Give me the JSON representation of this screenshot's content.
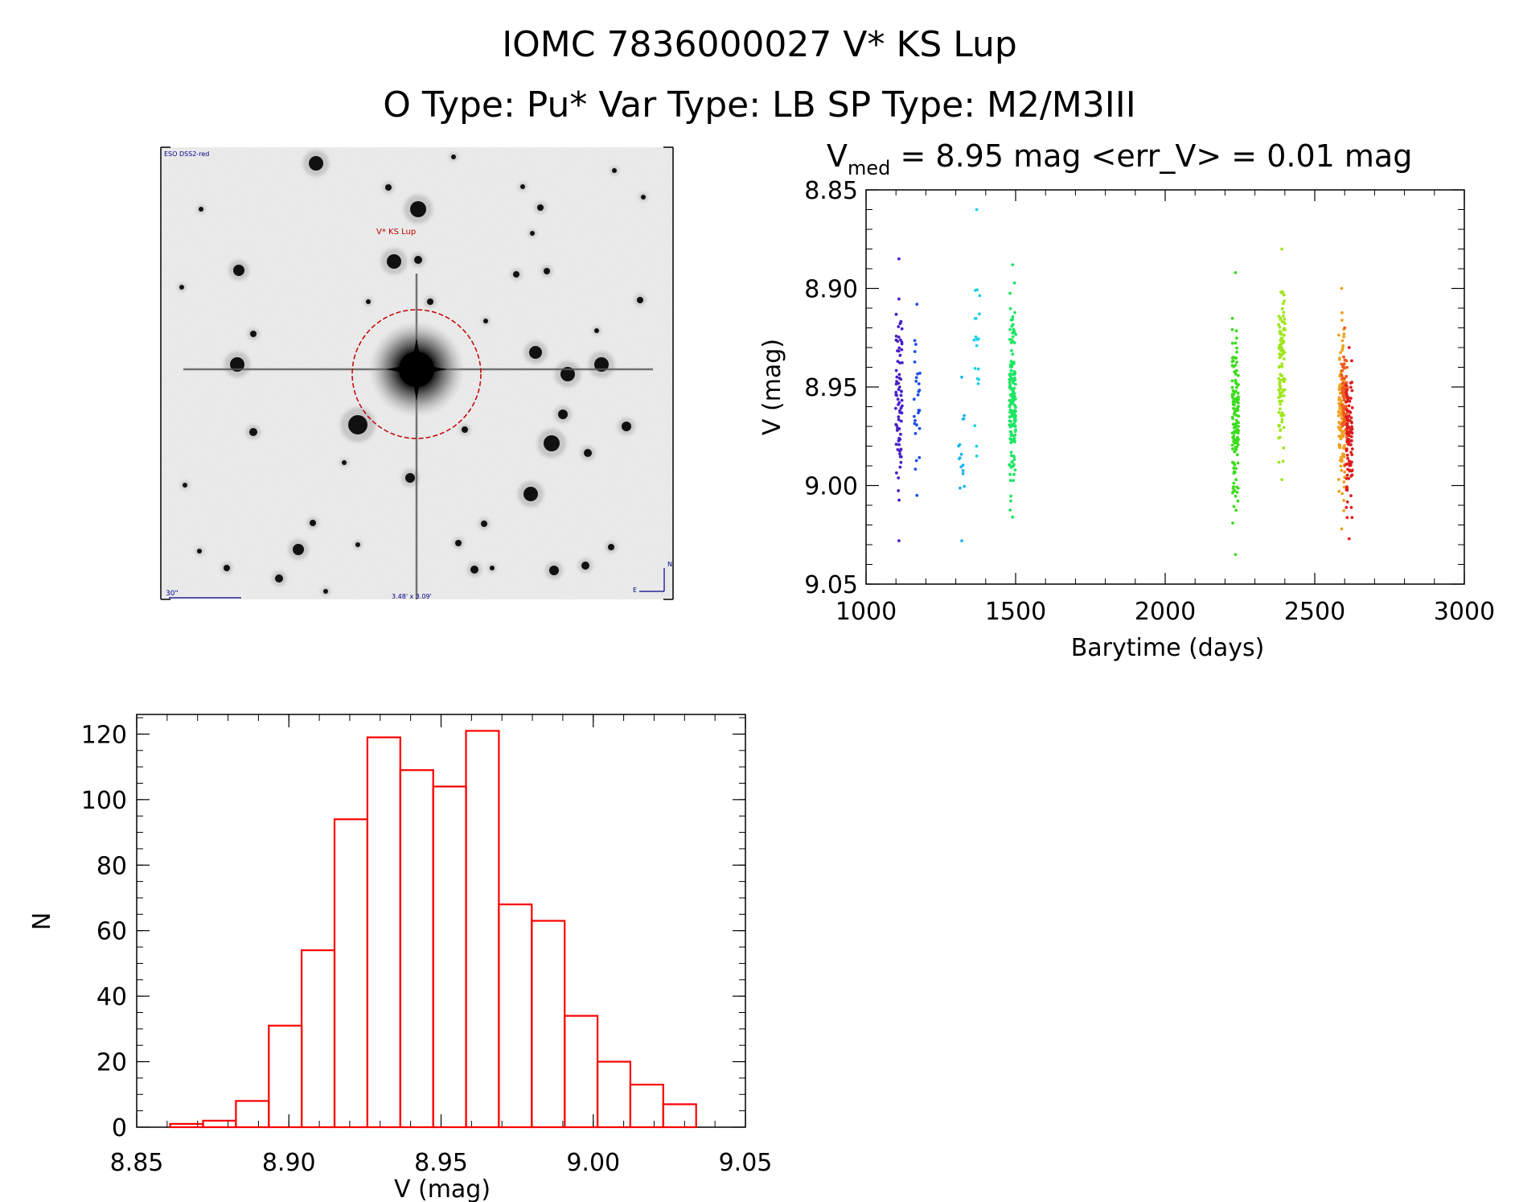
{
  "header": {
    "line1": "IOMC 7836000027   V* KS Lup",
    "line2": "O Type: Pu*  Var Type: LB  SP Type: M2/M3III"
  },
  "finder": {
    "survey_label": "ESO DSS2-red",
    "target_label": "V* KS Lup",
    "scale_label": "30\"",
    "size_label": "3.48' x 3.09'",
    "north_label": "N",
    "east_label": "E"
  },
  "chart_data": [
    {
      "type": "scatter",
      "title_prefix": "V",
      "title_sub": "med",
      "title_rest": " = 8.95 mag <err_V> = 0.01 mag",
      "xlabel": "Barytime (days)",
      "ylabel": "V (mag)",
      "xlim": [
        1000,
        3000
      ],
      "ylim": [
        9.05,
        8.85
      ],
      "y_inverted": true,
      "xticks": [
        "1000",
        "1500",
        "2000",
        "2500",
        "3000"
      ],
      "yticks": [
        "8.85",
        "8.90",
        "8.95",
        "9.00",
        "9.05"
      ],
      "groups": [
        {
          "x": 1110,
          "ymin": 8.885,
          "ymax": 9.028,
          "n": 75,
          "color": "#4b1ec8"
        },
        {
          "x": 1170,
          "ymin": 8.908,
          "ymax": 9.005,
          "n": 25,
          "color": "#1e50e6"
        },
        {
          "x": 1320,
          "ymin": 8.945,
          "ymax": 9.028,
          "n": 14,
          "color": "#1eb4f0"
        },
        {
          "x": 1370,
          "ymin": 8.86,
          "ymax": 8.985,
          "n": 18,
          "color": "#1ed2e6"
        },
        {
          "x": 1490,
          "ymin": 8.888,
          "ymax": 9.016,
          "n": 170,
          "color": "#1ee664"
        },
        {
          "x": 2235,
          "ymin": 8.892,
          "ymax": 9.035,
          "n": 140,
          "color": "#3cdc1e"
        },
        {
          "x": 2390,
          "ymin": 8.88,
          "ymax": 8.997,
          "n": 110,
          "color": "#a0e61e"
        },
        {
          "x": 2590,
          "ymin": 8.9,
          "ymax": 9.022,
          "n": 130,
          "color": "#f0a01e"
        },
        {
          "x": 2600,
          "ymin": 8.92,
          "ymax": 8.99,
          "n": 80,
          "color": "#f05a1e"
        },
        {
          "x": 2615,
          "ymin": 8.93,
          "ymax": 9.027,
          "n": 100,
          "color": "#dc1e1e"
        }
      ]
    },
    {
      "type": "bar",
      "xlabel": "V (mag)",
      "ylabel": "N",
      "xlim": [
        8.85,
        9.05
      ],
      "ylim": [
        0,
        126
      ],
      "xticks": [
        "8.85",
        "8.90",
        "8.95",
        "9.00",
        "9.05"
      ],
      "yticks": [
        "0",
        "20",
        "40",
        "60",
        "80",
        "100",
        "120"
      ],
      "bin_edges": [
        8.861,
        8.8718,
        8.8826,
        8.8934,
        8.9042,
        8.915,
        8.9258,
        8.9366,
        8.9474,
        8.9582,
        8.969,
        8.9798,
        8.9906,
        9.0014,
        9.0122,
        9.023,
        9.0338
      ],
      "values": [
        1,
        2,
        8,
        31,
        54,
        94,
        119,
        109,
        104,
        121,
        68,
        63,
        34,
        20,
        13,
        7
      ],
      "bar_color": "#ff0000"
    }
  ]
}
